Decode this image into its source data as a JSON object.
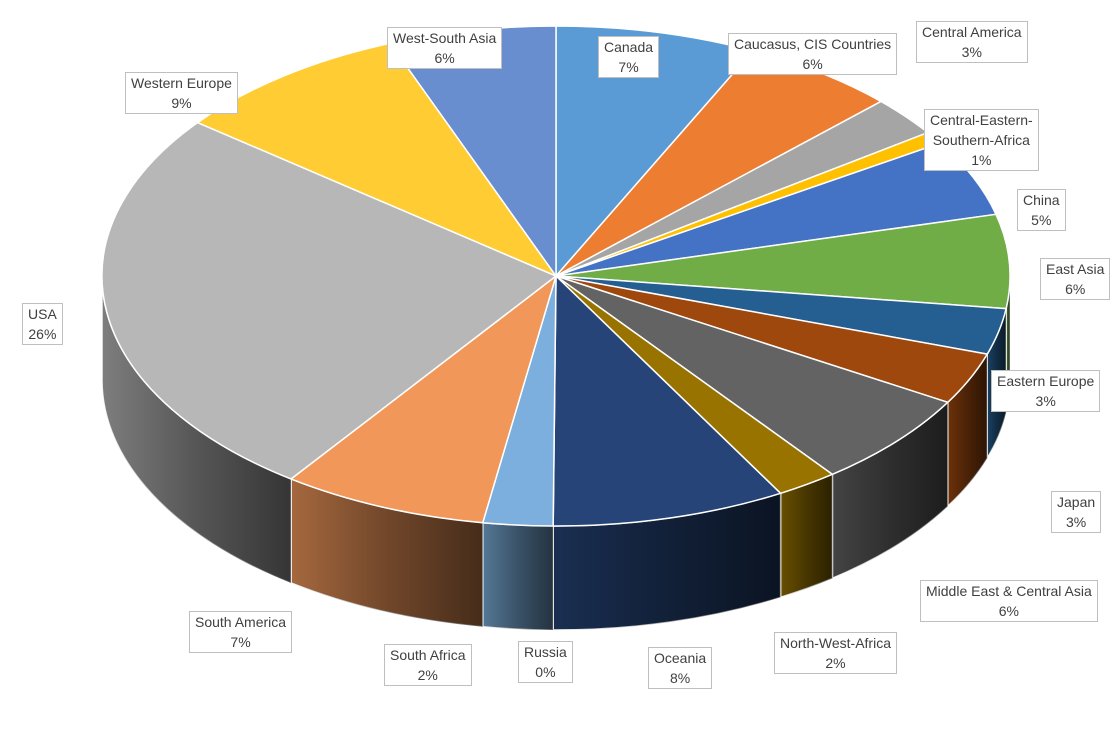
{
  "chart_data": {
    "type": "pie",
    "title": "",
    "legend": "none",
    "slices": [
      {
        "name": "Canada",
        "label": "Canada",
        "pct_label": "7%",
        "value": 7.2,
        "color": "#5b9bd5"
      },
      {
        "name": "Caucasus, CIS Countries",
        "label": "Caucasus, CIS Countries",
        "pct_label": "6%",
        "value": 5.6,
        "color": "#ed7d31"
      },
      {
        "name": "Central America",
        "label": "Central America",
        "pct_label": "3%",
        "value": 2.6,
        "color": "#a5a5a5"
      },
      {
        "name": "Central-Eastern-Southern-Africa",
        "label": "Central-Eastern-Southern-Africa",
        "label_lines": [
          "Central-Eastern-",
          "Southern-Africa"
        ],
        "pct_label": "1%",
        "value": 0.8,
        "color": "#ffc000"
      },
      {
        "name": "China",
        "label": "China",
        "pct_label": "5%",
        "value": 5.0,
        "color": "#4472c4"
      },
      {
        "name": "East Asia",
        "label": "East Asia",
        "pct_label": "6%",
        "value": 6.1,
        "color": "#70ad47"
      },
      {
        "name": "Eastern Europe",
        "label": "Eastern Europe",
        "pct_label": "3%",
        "value": 3.0,
        "color": "#255e91"
      },
      {
        "name": "Japan",
        "label": "Japan",
        "pct_label": "3%",
        "value": 3.4,
        "color": "#9e480e"
      },
      {
        "name": "Middle East & Central Asia",
        "label": "Middle East & Central Asia",
        "pct_label": "6%",
        "value": 6.2,
        "color": "#636363"
      },
      {
        "name": "North-West-Africa",
        "label": "North-West-Africa",
        "pct_label": "2%",
        "value": 2.2,
        "color": "#997300"
      },
      {
        "name": "Oceania",
        "label": "Oceania",
        "pct_label": "8%",
        "value": 8.4,
        "color": "#264478"
      },
      {
        "name": "Russia",
        "label": "Russia",
        "pct_label": "0%",
        "value": 0.0,
        "color": "#43682b"
      },
      {
        "name": "South Africa",
        "label": "South Africa",
        "pct_label": "2%",
        "value": 2.5,
        "color": "#7cafdd"
      },
      {
        "name": "South America",
        "label": "South America",
        "pct_label": "7%",
        "value": 7.4,
        "color": "#f1975a"
      },
      {
        "name": "USA",
        "label": "USA",
        "pct_label": "26%",
        "value": 25.8,
        "color": "#b7b7b7"
      },
      {
        "name": "Western Europe",
        "label": "Western Europe",
        "pct_label": "9%",
        "value": 8.6,
        "color": "#ffcd33"
      },
      {
        "name": "West-South Asia",
        "label": "West-South Asia",
        "pct_label": "6%",
        "value": 6.0,
        "color": "#698ed0"
      }
    ]
  }
}
